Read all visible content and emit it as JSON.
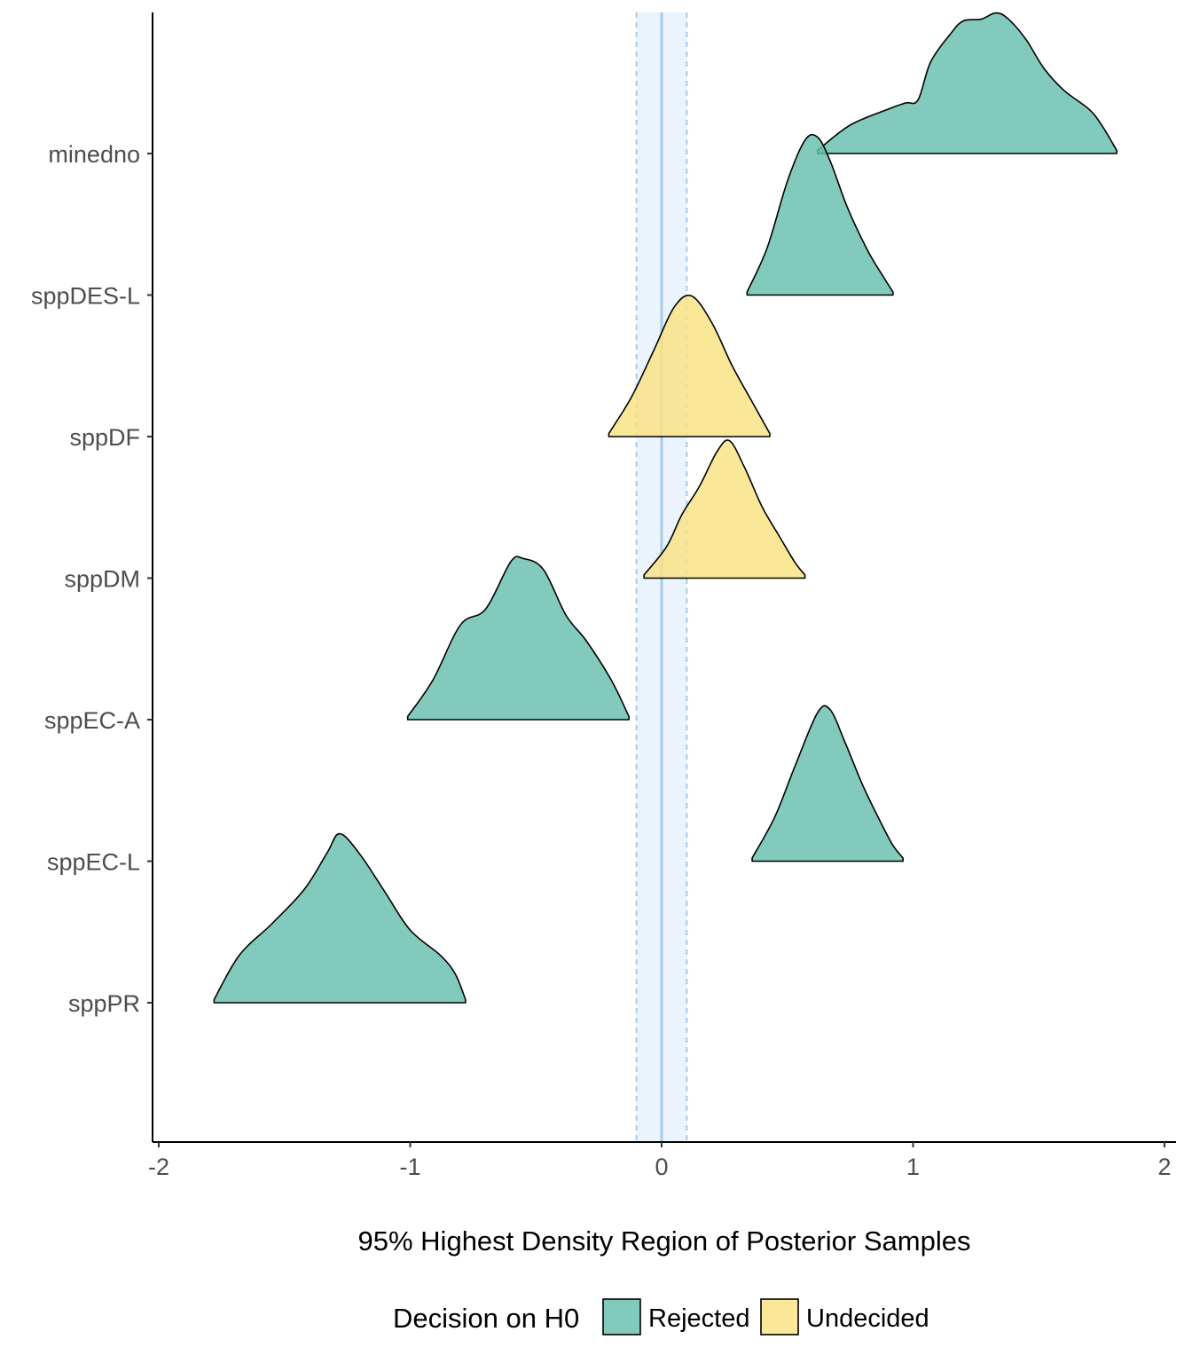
{
  "chart_data": {
    "type": "density-ridgeline",
    "title": "",
    "xlabel": "95% Highest Density Region of Posterior Samples",
    "ylabel": "",
    "xlim": [
      -2,
      2
    ],
    "x_ticks": [
      "-2",
      "-1",
      "0",
      "1",
      "2"
    ],
    "x_tick_values": [
      -2,
      -1,
      0,
      1,
      2
    ],
    "reference_line": 0,
    "rope": [
      -0.1,
      0.1
    ],
    "grid": false,
    "categories": [
      "minedno",
      "sppDES-L",
      "sppDF",
      "sppDM",
      "sppEC-A",
      "sppEC-L",
      "sppPR"
    ],
    "series": [
      {
        "category": "minedno",
        "decision": "Rejected",
        "hdr": [
          0.62,
          1.81
        ],
        "profile": [
          [
            0.62,
            0.02
          ],
          [
            0.75,
            0.18
          ],
          [
            0.9,
            0.28
          ],
          [
            0.97,
            0.32
          ],
          [
            1.02,
            0.34
          ],
          [
            1.07,
            0.58
          ],
          [
            1.15,
            0.76
          ],
          [
            1.2,
            0.84
          ],
          [
            1.27,
            0.85
          ],
          [
            1.33,
            0.89
          ],
          [
            1.38,
            0.85
          ],
          [
            1.45,
            0.72
          ],
          [
            1.52,
            0.54
          ],
          [
            1.6,
            0.4
          ],
          [
            1.7,
            0.28
          ],
          [
            1.75,
            0.18
          ],
          [
            1.81,
            0.02
          ]
        ]
      },
      {
        "category": "sppDES-L",
        "decision": "Rejected",
        "hdr": [
          0.34,
          0.92
        ],
        "profile": [
          [
            0.34,
            0.02
          ],
          [
            0.42,
            0.3
          ],
          [
            0.5,
            0.72
          ],
          [
            0.57,
            0.98
          ],
          [
            0.62,
            1.0
          ],
          [
            0.67,
            0.85
          ],
          [
            0.74,
            0.55
          ],
          [
            0.82,
            0.28
          ],
          [
            0.88,
            0.12
          ],
          [
            0.92,
            0.02
          ]
        ]
      },
      {
        "category": "sppDF",
        "decision": "Undecided",
        "hdr": [
          -0.21,
          0.43
        ],
        "profile": [
          [
            -0.21,
            0.02
          ],
          [
            -0.12,
            0.25
          ],
          [
            -0.03,
            0.55
          ],
          [
            0.05,
            0.82
          ],
          [
            0.12,
            0.89
          ],
          [
            0.2,
            0.72
          ],
          [
            0.28,
            0.45
          ],
          [
            0.36,
            0.22
          ],
          [
            0.43,
            0.02
          ]
        ]
      },
      {
        "category": "sppDM",
        "decision": "Undecided",
        "hdr": [
          -0.07,
          0.57
        ],
        "profile": [
          [
            -0.07,
            0.02
          ],
          [
            0.02,
            0.2
          ],
          [
            0.08,
            0.4
          ],
          [
            0.15,
            0.58
          ],
          [
            0.22,
            0.8
          ],
          [
            0.27,
            0.87
          ],
          [
            0.33,
            0.7
          ],
          [
            0.4,
            0.45
          ],
          [
            0.47,
            0.26
          ],
          [
            0.53,
            0.1
          ],
          [
            0.57,
            0.02
          ]
        ]
      },
      {
        "category": "sppEC-A",
        "decision": "Rejected",
        "hdr": [
          -1.01,
          -0.13
        ],
        "profile": [
          [
            -1.01,
            0.02
          ],
          [
            -0.91,
            0.25
          ],
          [
            -0.8,
            0.6
          ],
          [
            -0.7,
            0.7
          ],
          [
            -0.6,
            1.0
          ],
          [
            -0.55,
            1.02
          ],
          [
            -0.47,
            0.95
          ],
          [
            -0.38,
            0.66
          ],
          [
            -0.3,
            0.5
          ],
          [
            -0.2,
            0.25
          ],
          [
            -0.13,
            0.02
          ]
        ]
      },
      {
        "category": "sppEC-L",
        "decision": "Rejected",
        "hdr": [
          0.36,
          0.96
        ],
        "profile": [
          [
            0.36,
            0.02
          ],
          [
            0.45,
            0.28
          ],
          [
            0.53,
            0.6
          ],
          [
            0.62,
            0.94
          ],
          [
            0.67,
            0.96
          ],
          [
            0.73,
            0.75
          ],
          [
            0.8,
            0.48
          ],
          [
            0.87,
            0.25
          ],
          [
            0.92,
            0.1
          ],
          [
            0.96,
            0.02
          ]
        ]
      },
      {
        "category": "sppPR",
        "decision": "Rejected",
        "hdr": [
          -1.78,
          -0.78
        ],
        "profile": [
          [
            -1.78,
            0.02
          ],
          [
            -1.68,
            0.3
          ],
          [
            -1.55,
            0.5
          ],
          [
            -1.42,
            0.72
          ],
          [
            -1.33,
            0.95
          ],
          [
            -1.28,
            1.07
          ],
          [
            -1.2,
            0.94
          ],
          [
            -1.1,
            0.7
          ],
          [
            -1.0,
            0.46
          ],
          [
            -0.88,
            0.3
          ],
          [
            -0.82,
            0.18
          ],
          [
            -0.78,
            0.02
          ]
        ]
      }
    ],
    "legend": {
      "title": "Decision on H0",
      "position": "bottom",
      "entries": [
        {
          "label": "Rejected",
          "color": "#66bead"
        },
        {
          "label": "Undecided",
          "color": "#fae281"
        }
      ]
    },
    "colors": {
      "Rejected": "#66bead",
      "Undecided": "#fae281",
      "rope_band": "#dbeafa",
      "reference_line": "#a7cbe9"
    }
  }
}
